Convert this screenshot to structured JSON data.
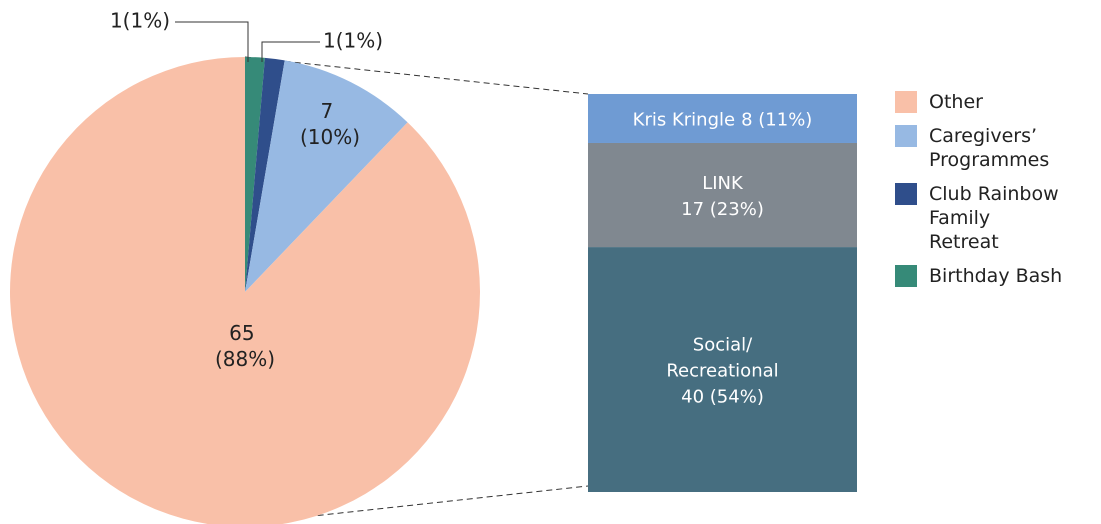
{
  "chart_data": [
    {
      "type": "pie",
      "series": [
        {
          "name": "Other",
          "color": "#f9c0a8",
          "values": [
            65
          ],
          "value_labels": [
            "65 (88%)"
          ]
        },
        {
          "name": "Caregivers’ Programmes",
          "color": "#97b9e3",
          "values": [
            7
          ],
          "value_labels": [
            "7 (10%)"
          ]
        },
        {
          "name": "Club Rainbow Family Retreat",
          "color": "#2f4e8b",
          "values": [
            1
          ],
          "value_labels": [
            "1(1%)"
          ]
        },
        {
          "name": "Birthday Bash",
          "color": "#368a78",
          "values": [
            1
          ],
          "value_labels": [
            "1(1%)"
          ]
        }
      ]
    },
    {
      "type": "stacked_bar",
      "categories": [
        "Kris Kringle",
        "LINK",
        "Social/Recreational"
      ],
      "colors": [
        "#6f9bd3",
        "#808890",
        "#466e80"
      ],
      "values": [
        8,
        17,
        40
      ],
      "value_labels": [
        "8 (11%)",
        "17 (23%)",
        "40 (54%)"
      ]
    }
  ]
}
